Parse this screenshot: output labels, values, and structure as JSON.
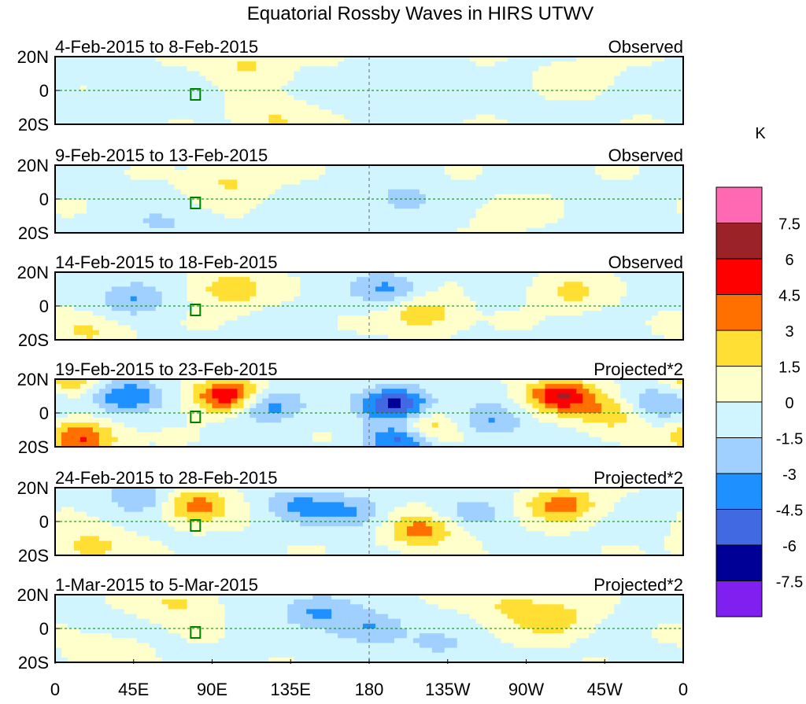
{
  "chart_data": {
    "type": "heatmap",
    "title": "Equatorial Rossby Waves in HIRS UTWV",
    "colorbar": {
      "unit": "K",
      "levels": [
        "7.5",
        "6",
        "4.5",
        "3",
        "1.5",
        "0",
        "-1.5",
        "-3",
        "-4.5",
        "-6",
        "-7.5"
      ],
      "colors": [
        "#ff69b4",
        "#9b2226",
        "#ff0000",
        "#ff7000",
        "#ffdf33",
        "#ffffcc",
        "#d1f5ff",
        "#a0d0ff",
        "#1e90ff",
        "#4169e1",
        "#000096",
        "#8020f0"
      ]
    },
    "x_ticks": [
      "0",
      "45E",
      "90E",
      "135E",
      "180",
      "135W",
      "90W",
      "45W",
      "0"
    ],
    "y_ticks": [
      "20N",
      "0",
      "20S"
    ],
    "panels": [
      {
        "period": "4-Feb-2015 to 8-Feb-2015",
        "label": "Observed",
        "features": [
          [
            110,
            15,
            2
          ],
          [
            125,
            -18,
            2
          ],
          [
            40,
            -10,
            -1
          ],
          [
            200,
            5,
            -1.2
          ],
          [
            300,
            10,
            1
          ]
        ]
      },
      {
        "period": "9-Feb-2015 to 13-Feb-2015",
        "label": "Observed",
        "features": [
          [
            100,
            10,
            2
          ],
          [
            200,
            0,
            -2
          ],
          [
            60,
            -15,
            -1.5
          ],
          [
            260,
            -10,
            1
          ]
        ]
      },
      {
        "period": "14-Feb-2015 to 18-Feb-2015",
        "label": "Observed",
        "features": [
          [
            100,
            10,
            3
          ],
          [
            45,
            5,
            -3
          ],
          [
            210,
            -5,
            3
          ],
          [
            190,
            10,
            -3
          ],
          [
            295,
            8,
            2
          ],
          [
            20,
            -15,
            2
          ]
        ]
      },
      {
        "period": "19-Feb-2015 to 23-Feb-2015",
        "label": "Projected*2",
        "features": [
          [
            100,
            10,
            6.5
          ],
          [
            290,
            10,
            6
          ],
          [
            195,
            5,
            -6.5
          ],
          [
            200,
            -15,
            -6.5
          ],
          [
            210,
            -10,
            5
          ],
          [
            15,
            -15,
            5
          ],
          [
            40,
            10,
            -4.5
          ],
          [
            120,
            5,
            -4.5
          ],
          [
            10,
            20,
            3
          ],
          [
            250,
            -5,
            -3
          ],
          [
            320,
            0,
            3
          ],
          [
            345,
            5,
            -3
          ]
        ]
      },
      {
        "period": "24-Feb-2015 to 28-Feb-2015",
        "label": "Projected*2",
        "features": [
          [
            80,
            10,
            4
          ],
          [
            290,
            10,
            4
          ],
          [
            210,
            -5,
            4
          ],
          [
            50,
            15,
            -3
          ],
          [
            140,
            10,
            -3
          ],
          [
            170,
            5,
            -3
          ],
          [
            20,
            -15,
            2.5
          ],
          [
            240,
            5,
            -2
          ]
        ]
      },
      {
        "period": "1-Mar-2015 to 5-Mar-2015",
        "label": "Projected*2",
        "features": [
          [
            70,
            15,
            2
          ],
          [
            285,
            5,
            3
          ],
          [
            150,
            10,
            -3
          ],
          [
            180,
            0,
            -3
          ],
          [
            260,
            15,
            2
          ],
          [
            30,
            -15,
            1.5
          ],
          [
            220,
            -10,
            -1.5
          ]
        ]
      }
    ]
  }
}
